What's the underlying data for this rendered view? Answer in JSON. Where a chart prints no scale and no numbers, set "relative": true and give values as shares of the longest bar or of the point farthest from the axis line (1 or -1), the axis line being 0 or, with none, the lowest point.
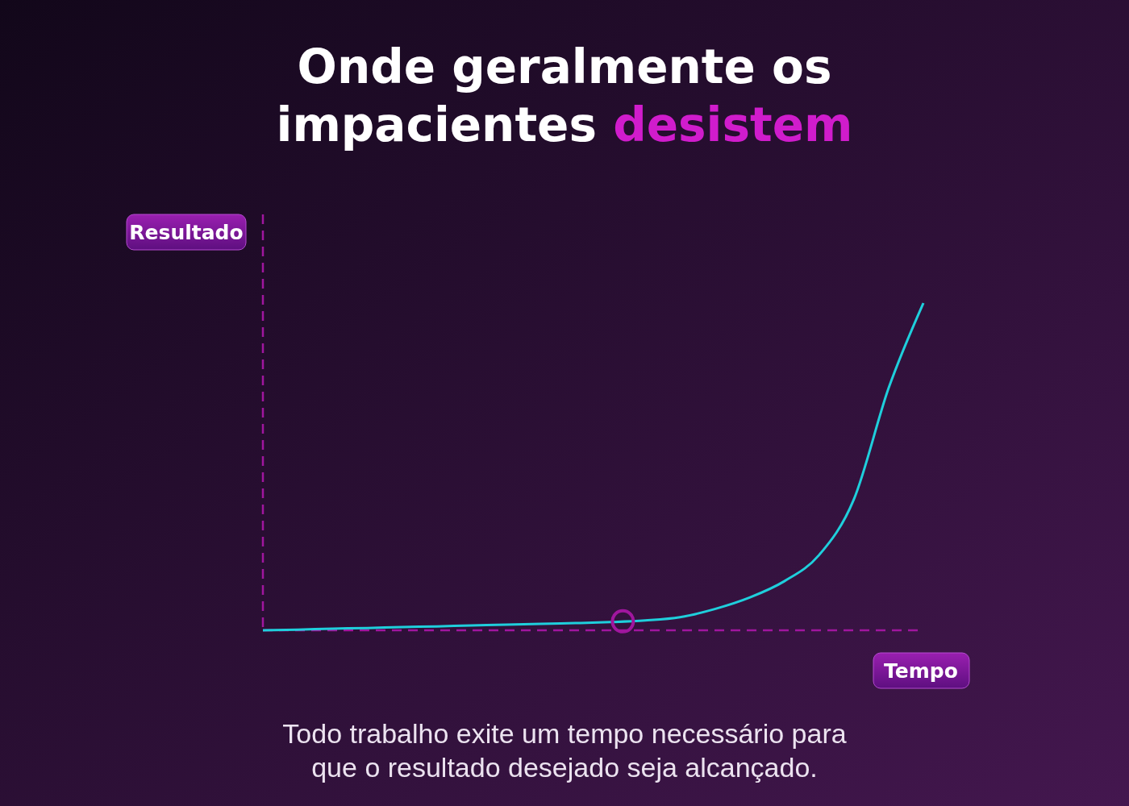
{
  "chart_data": {
    "type": "line",
    "title": "Onde geralmente os impacientes desistem",
    "xlabel": "Tempo",
    "ylabel": "Resultado",
    "relative": true,
    "categories": [
      null,
      null,
      null,
      null,
      null,
      null,
      null,
      null,
      null,
      null,
      null,
      null,
      null,
      null,
      null,
      null,
      null,
      null,
      null,
      null
    ],
    "series": [
      {
        "color": "#1fcfdc",
        "values": [
          0,
          0.002,
          0.005,
          0.007,
          0.01,
          0.012,
          0.015,
          0.017,
          0.02,
          0.022,
          0.025,
          0.03,
          0.04,
          0.065,
          0.1,
          0.15,
          0.23,
          0.4,
          0.74,
          1
        ]
      }
    ],
    "annotations": [
      "Todo trabalho exite um tempo necessário para que o resultado desejado seja alcançado."
    ],
    "line_style": "solid",
    "marker": "none"
  }
}
